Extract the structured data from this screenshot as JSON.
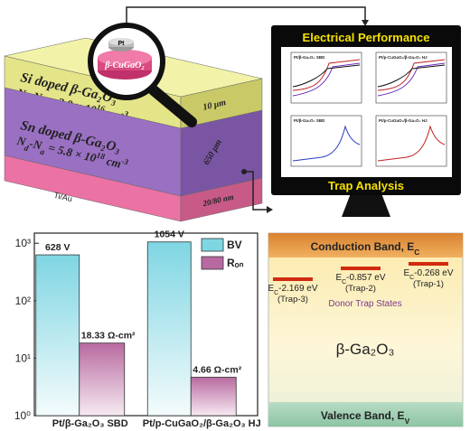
{
  "chart_data": {
    "type": "bar",
    "log_scale": true,
    "categories": [
      "Pt/β-Ga₂O₃ SBD",
      "Pt/p-CuGaO₂/β-Ga₂O₃ HJ"
    ],
    "series": [
      {
        "name": "BV",
        "color": "#7fd6e3",
        "values": [
          628,
          1054
        ],
        "value_labels": [
          "628 V",
          "1054 V"
        ]
      },
      {
        "name": "Rₒₙ",
        "color": "#b86aa0",
        "values": [
          18.33,
          4.66
        ],
        "value_labels": [
          "18.33 Ω-cm²",
          "4.66 Ω-cm²"
        ]
      }
    ],
    "ylim": [
      1,
      1500
    ],
    "yticks": [
      {
        "value": 1,
        "label": "10⁰"
      },
      {
        "value": 10,
        "label": "10¹"
      },
      {
        "value": 100,
        "label": "10²"
      },
      {
        "value": 1000,
        "label": "10³"
      }
    ],
    "legend": "upper right"
  },
  "device": {
    "magnifier": {
      "top": "Pt",
      "bottom": "β-CuGaO₂"
    },
    "layers": [
      {
        "material": "Si doped β-Ga₂O₃",
        "doping": [
          "N",
          "d",
          "-N",
          "a",
          " = 2.0 × 10",
          "16",
          " cm",
          "-3"
        ],
        "thickness": "10 μm"
      },
      {
        "material": "Sn doped β-Ga₂O₃",
        "doping": [
          "N",
          "d",
          "-N",
          "a",
          " = 5.8 × 10",
          "18",
          " cm",
          "-3"
        ],
        "thickness": "650 μm"
      },
      {
        "material": "Ti/Au",
        "thickness": "20/80 nm"
      }
    ]
  },
  "monitor": {
    "top_title": "Electrical Performance",
    "bottom_title": "Trap Analysis",
    "panels": [
      "Pt/β-Ga₂O₃ SBD",
      "Pt/p-CuGaO₂/β-Ga₂O₃ HJ",
      "Pt/β-Ga₂O₃ SBD",
      "Pt/p-CuGaO₂/β-Ga₂O₃ HJ"
    ]
  },
  "band_diagram": {
    "conduction": [
      "Conduction Band, E",
      "C"
    ],
    "valence": [
      "Valence Band, E",
      "V"
    ],
    "material": "β-Ga₂O₃",
    "states": "Donor Trap States",
    "traps": [
      {
        "energy": [
          "E",
          "C",
          "-2.169 eV"
        ],
        "name": "(Trap-3)"
      },
      {
        "energy": [
          "E",
          "C",
          "-0.857 eV"
        ],
        "name": "(Trap-2)"
      },
      {
        "energy": [
          "E",
          "C",
          "-0.268 eV"
        ],
        "name": "(Trap-1)"
      }
    ]
  }
}
